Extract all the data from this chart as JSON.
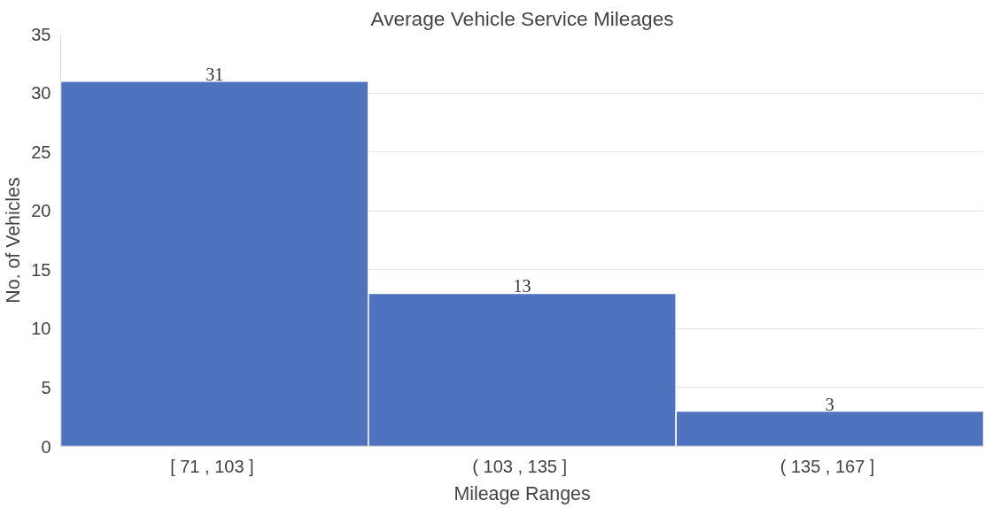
{
  "chart_data": {
    "type": "bar",
    "title": "Average Vehicle Service Mileages",
    "xlabel": "Mileage Ranges",
    "ylabel": "No. of Vehicles",
    "categories": [
      "[ 71 ,  103 ]",
      "( 103 ,  135 ]",
      "( 135 ,  167 ]"
    ],
    "values": [
      31,
      13,
      3
    ],
    "color": "#4f72be",
    "ylim": [
      0,
      35
    ],
    "yticks": [
      0,
      5,
      10,
      15,
      20,
      25,
      30,
      35
    ],
    "grid": "y",
    "data_labels": true
  }
}
